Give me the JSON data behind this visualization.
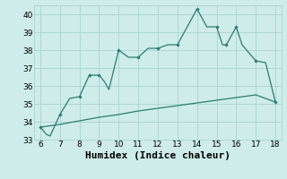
{
  "xlabel": "Humidex (Indice chaleur)",
  "x_line1": [
    6,
    6.3,
    6.5,
    7,
    7.5,
    8,
    8.5,
    9,
    9.3,
    9.5,
    10,
    10.5,
    11,
    11.5,
    12,
    12.5,
    13,
    14,
    14.5,
    15,
    15.3,
    15.5,
    16,
    16.3,
    17,
    17.5,
    18
  ],
  "y_line1": [
    33.7,
    33.3,
    33.2,
    34.4,
    35.3,
    35.4,
    36.6,
    36.6,
    36.2,
    35.8,
    38.0,
    37.6,
    37.6,
    38.1,
    38.1,
    38.3,
    38.3,
    40.3,
    39.3,
    39.3,
    38.3,
    38.3,
    39.3,
    38.3,
    37.4,
    37.3,
    35.1
  ],
  "x_markers1": [
    6,
    7,
    8,
    8.5,
    9,
    10,
    11,
    12,
    13,
    14,
    15,
    15.5,
    16,
    17,
    18
  ],
  "y_markers1": [
    33.7,
    34.4,
    35.4,
    36.6,
    36.6,
    38.0,
    37.6,
    38.1,
    38.3,
    40.3,
    39.3,
    38.3,
    39.3,
    37.4,
    35.1
  ],
  "x_line2": [
    6,
    7,
    8,
    9,
    10,
    11,
    12,
    13,
    14,
    15,
    16,
    17,
    18
  ],
  "y_line2": [
    33.7,
    33.85,
    34.05,
    34.25,
    34.4,
    34.6,
    34.75,
    34.9,
    35.05,
    35.2,
    35.35,
    35.5,
    35.1
  ],
  "line_color": "#2a7d6f",
  "bg_color": "#ceecea",
  "grid_color": "#aad4d0",
  "xlim": [
    5.7,
    18.3
  ],
  "ylim": [
    33,
    40.5
  ],
  "xticks": [
    6,
    7,
    8,
    9,
    10,
    11,
    12,
    13,
    14,
    15,
    16,
    17,
    18
  ],
  "yticks": [
    33,
    34,
    35,
    36,
    37,
    38,
    39,
    40
  ],
  "xlabel_fontsize": 8,
  "tick_fontsize": 6.5
}
